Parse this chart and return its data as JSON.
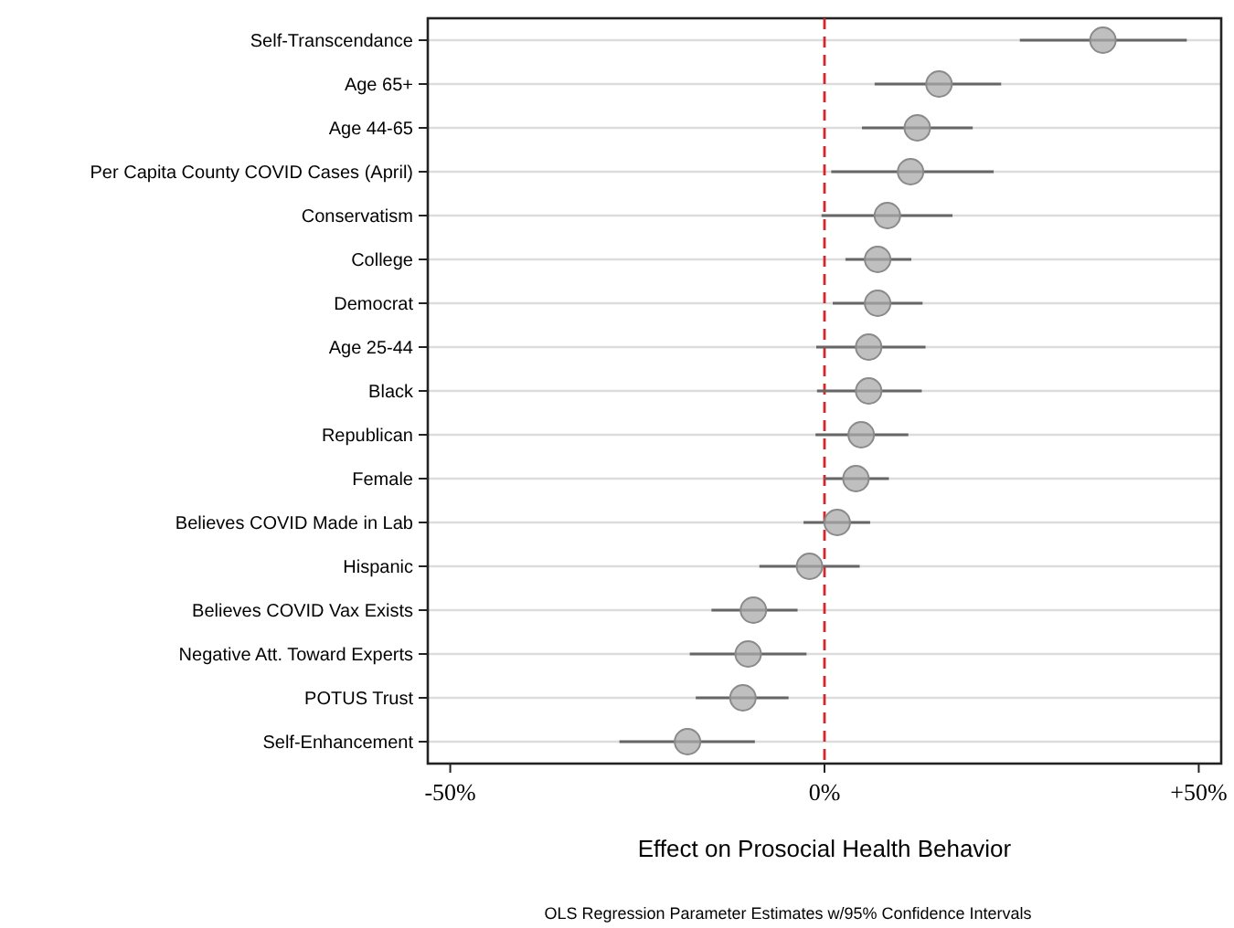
{
  "chart_data": {
    "type": "scatter",
    "orientation": "horizontal",
    "xlabel": "Effect on Prosocial Health Behavior",
    "annotations": [
      "OLS Regression Parameter Estimates w/95% Confidence Intervals"
    ],
    "categories": [
      "Self-Transcendance",
      "Age 65+",
      "Age 44-65",
      "Per Capita County COVID Cases (April)",
      "Conservatism",
      "College",
      "Democrat",
      "Age 25-44",
      "Black",
      "Republican",
      "Female",
      "Believes COVID Made in Lab",
      "Hispanic",
      "Believes COVID Vax Exists",
      "Negative Att. Toward Experts",
      "POTUS Trust",
      "Self-Enhancement"
    ],
    "series": [
      {
        "color": "#a9a9a9",
        "values": [
          37.2,
          15.3,
          12.4,
          11.5,
          8.4,
          7.1,
          7.1,
          5.9,
          5.9,
          4.9,
          4.2,
          1.7,
          -2.0,
          -9.5,
          -10.2,
          -10.9,
          -18.3
        ],
        "errors": [
          [
            26.1,
            48.4
          ],
          [
            6.7,
            23.6
          ],
          [
            5.0,
            19.8
          ],
          [
            0.9,
            22.6
          ],
          [
            -0.4,
            17.1
          ],
          [
            2.8,
            11.6
          ],
          [
            1.1,
            13.1
          ],
          [
            -1.1,
            13.5
          ],
          [
            -1.0,
            13.0
          ],
          [
            -1.2,
            11.2
          ],
          [
            0,
            8.6
          ],
          [
            -2.8,
            6.1
          ],
          [
            -8.7,
            4.7
          ],
          [
            -15.1,
            -3.6
          ],
          [
            -18.0,
            -2.4
          ],
          [
            -17.2,
            -4.8
          ],
          [
            -27.4,
            -9.3
          ]
        ]
      }
    ],
    "xlim": [
      -53,
      53
    ],
    "xticks": [
      {
        "value": -50,
        "label": "-50%"
      },
      {
        "value": 0,
        "label": "0%"
      },
      {
        "value": 50,
        "label": "+50%"
      }
    ],
    "ref_lines": [
      {
        "axis": "x",
        "value": 0,
        "color": "#d62728",
        "line_style": "dashed"
      }
    ],
    "grid": "y",
    "marker": "circle"
  }
}
